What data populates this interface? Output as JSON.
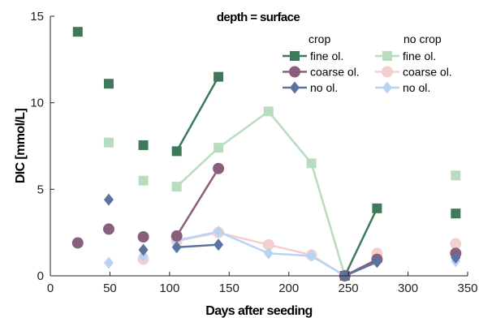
{
  "chart_data": {
    "type": "scatter",
    "title": "depth = surface",
    "xlabel": "Days after seeding",
    "ylabel": "DIC [mmol/L]",
    "xlim": [
      0,
      350
    ],
    "ylim": [
      0,
      15
    ],
    "xticks": [
      "0",
      "50",
      "100",
      "150",
      "200",
      "250",
      "300",
      "350"
    ],
    "yticks": [
      "0",
      "5",
      "10",
      "15"
    ],
    "grid": false,
    "legend_position": "top-right",
    "legend_groups": [
      "crop",
      "no crop"
    ],
    "series": [
      {
        "name": "fine ol.",
        "group": "crop",
        "marker": "square",
        "color": "#3e7a5a",
        "points": [
          [
            23,
            14.1
          ],
          [
            49,
            11.1
          ],
          [
            78,
            7.55
          ],
          [
            106,
            7.2
          ],
          [
            141,
            11.5
          ],
          [
            274,
            3.9
          ],
          [
            340,
            3.6
          ],
          [
            247,
            0.0
          ]
        ],
        "lines": [
          [
            [
              106,
              7.2
            ],
            [
              141,
              11.5
            ]
          ],
          [
            [
              247,
              0.0
            ],
            [
              274,
              3.9
            ]
          ]
        ]
      },
      {
        "name": "coarse ol.",
        "group": "crop",
        "marker": "circle",
        "color": "#8a5f7e",
        "points": [
          [
            23,
            1.9
          ],
          [
            49,
            2.7
          ],
          [
            78,
            2.25
          ],
          [
            106,
            2.3
          ],
          [
            141,
            6.2
          ],
          [
            247,
            0.0
          ],
          [
            274,
            0.95
          ],
          [
            340,
            1.3
          ]
        ],
        "lines": [
          [
            [
              106,
              2.3
            ],
            [
              141,
              6.2
            ]
          ],
          [
            [
              247,
              0.0
            ],
            [
              274,
              0.95
            ]
          ]
        ]
      },
      {
        "name": "no ol.",
        "group": "crop",
        "marker": "diamond",
        "color": "#5b739f",
        "points": [
          [
            49,
            4.4
          ],
          [
            78,
            1.5
          ],
          [
            106,
            1.65
          ],
          [
            141,
            1.8
          ],
          [
            247,
            0.0
          ],
          [
            274,
            0.8
          ],
          [
            340,
            1.05
          ]
        ],
        "lines": [
          [
            [
              106,
              1.65
            ],
            [
              141,
              1.8
            ]
          ],
          [
            [
              247,
              0.0
            ],
            [
              274,
              0.8
            ]
          ]
        ]
      },
      {
        "name": "fine ol.",
        "group": "no crop",
        "marker": "square",
        "color": "#b9dcbf",
        "points": [
          [
            49,
            7.7
          ],
          [
            78,
            5.5
          ],
          [
            106,
            5.15
          ],
          [
            141,
            7.4
          ],
          [
            183,
            9.5
          ],
          [
            219,
            6.5
          ],
          [
            247,
            0.0
          ],
          [
            340,
            5.8
          ]
        ],
        "lines": [
          [
            [
              106,
              5.15
            ],
            [
              141,
              7.4
            ],
            [
              183,
              9.5
            ],
            [
              219,
              6.5
            ],
            [
              247,
              0.0
            ]
          ]
        ]
      },
      {
        "name": "coarse ol.",
        "group": "no crop",
        "marker": "circle",
        "color": "#f2d0cf",
        "points": [
          [
            78,
            0.95
          ],
          [
            106,
            2.0
          ],
          [
            141,
            2.5
          ],
          [
            183,
            1.8
          ],
          [
            219,
            1.2
          ],
          [
            247,
            0.0
          ],
          [
            274,
            1.3
          ],
          [
            340,
            1.85
          ]
        ],
        "lines": [
          [
            [
              106,
              2.0
            ],
            [
              141,
              2.5
            ],
            [
              183,
              1.8
            ],
            [
              219,
              1.2
            ],
            [
              247,
              0.0
            ]
          ]
        ]
      },
      {
        "name": "no ol.",
        "group": "no crop",
        "marker": "diamond",
        "color": "#b9d3f3",
        "points": [
          [
            49,
            0.75
          ],
          [
            78,
            1.15
          ],
          [
            106,
            2.05
          ],
          [
            141,
            2.55
          ],
          [
            183,
            1.3
          ],
          [
            219,
            1.15
          ],
          [
            247,
            0.0
          ],
          [
            274,
            1.0
          ],
          [
            340,
            0.85
          ]
        ],
        "lines": [
          [
            [
              106,
              2.05
            ],
            [
              141,
              2.55
            ],
            [
              183,
              1.3
            ],
            [
              219,
              1.15
            ],
            [
              247,
              0.0
            ]
          ]
        ]
      }
    ]
  }
}
